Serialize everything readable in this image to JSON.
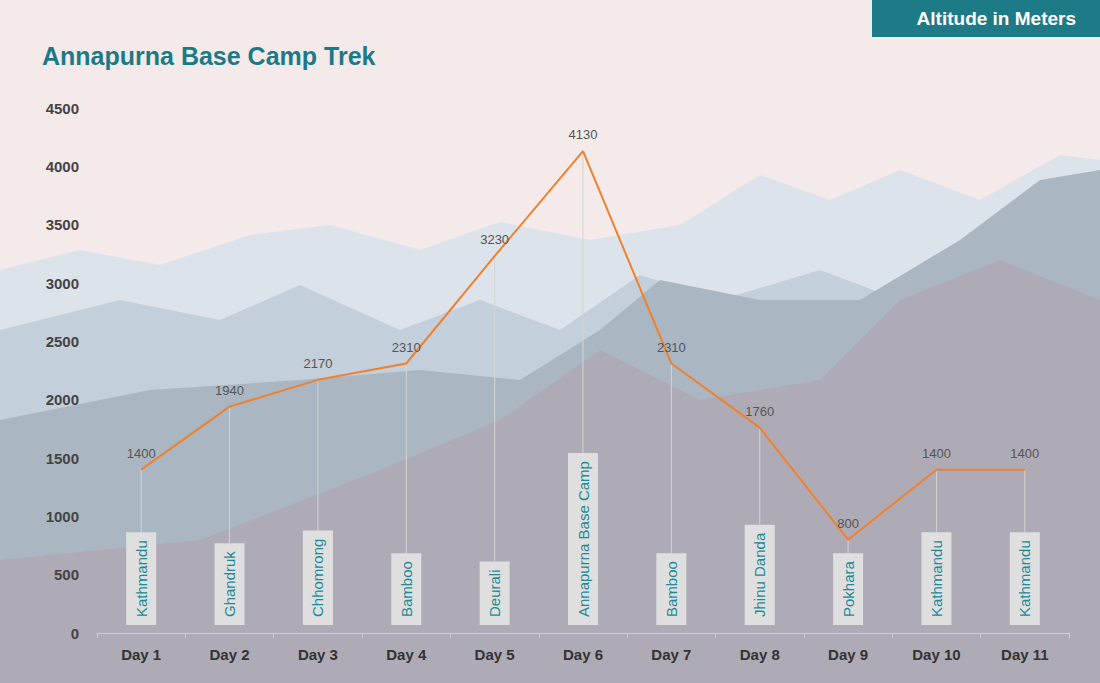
{
  "chart_data": {
    "type": "line",
    "title": "Annapurna Base Camp Trek",
    "ylabel": "Altitude in Meters",
    "categories": [
      "Day 1",
      "Day 2",
      "Day 3",
      "Day 4",
      "Day 5",
      "Day 6",
      "Day 7",
      "Day 8",
      "Day 9",
      "Day 10",
      "Day 11"
    ],
    "values": [
      1400,
      1940,
      2170,
      2310,
      3230,
      4130,
      2310,
      1760,
      800,
      1400,
      1400
    ],
    "annotations": [
      "Kathmandu",
      "Ghandruk",
      "Chhomrong",
      "Bamboo",
      "Deurali",
      "Annapurna Base Camp",
      "Bamboo",
      "Jhinu Danda",
      "Pokhara",
      "Kathmandu",
      "Kathmandu"
    ],
    "color": "#f0802c",
    "ylim": [
      0,
      4500
    ],
    "yticks": [
      0,
      500,
      1000,
      1500,
      2000,
      2500,
      3000,
      3500,
      4000,
      4500
    ],
    "grid": false,
    "data_labels": true
  }
}
